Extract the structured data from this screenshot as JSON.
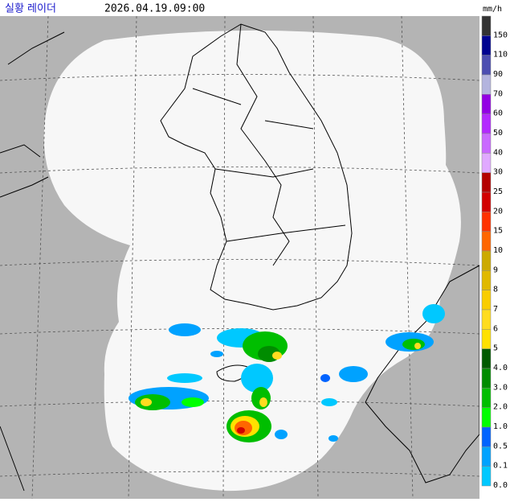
{
  "header": {
    "title": "실황 레이더",
    "time": "2026.04.19.09:00",
    "unit": "mm/h"
  },
  "legend": [
    {
      "label": "150",
      "color": "#333333"
    },
    {
      "label": "110",
      "color": "#000390"
    },
    {
      "label": "90",
      "color": "#4c4eb1"
    },
    {
      "label": "70",
      "color": "#b3b4de"
    },
    {
      "label": "60",
      "color": "#9300e4"
    },
    {
      "label": "50",
      "color": "#b329ff"
    },
    {
      "label": "40",
      "color": "#c969ff"
    },
    {
      "label": "30",
      "color": "#e0a9ff"
    },
    {
      "label": "25",
      "color": "#b40000"
    },
    {
      "label": "20",
      "color": "#d20000"
    },
    {
      "label": "15",
      "color": "#ff3200"
    },
    {
      "label": "10",
      "color": "#ff6600"
    },
    {
      "label": "9",
      "color": "#ccaa00"
    },
    {
      "label": "8",
      "color": "#e0b900"
    },
    {
      "label": "7",
      "color": "#f9cd00"
    },
    {
      "label": "6",
      "color": "#ffdc1f"
    },
    {
      "label": "5",
      "color": "#ffe100"
    },
    {
      "label": "4.0",
      "color": "#005a00"
    },
    {
      "label": "3.0",
      "color": "#008c00"
    },
    {
      "label": "2.0",
      "color": "#00be00"
    },
    {
      "label": "1.0",
      "color": "#00ff00"
    },
    {
      "label": "0.5",
      "color": "#0063ff"
    },
    {
      "label": "0.1",
      "color": "#00a2ff"
    },
    {
      "label": "0.0",
      "color": "#00c8ff"
    }
  ]
}
